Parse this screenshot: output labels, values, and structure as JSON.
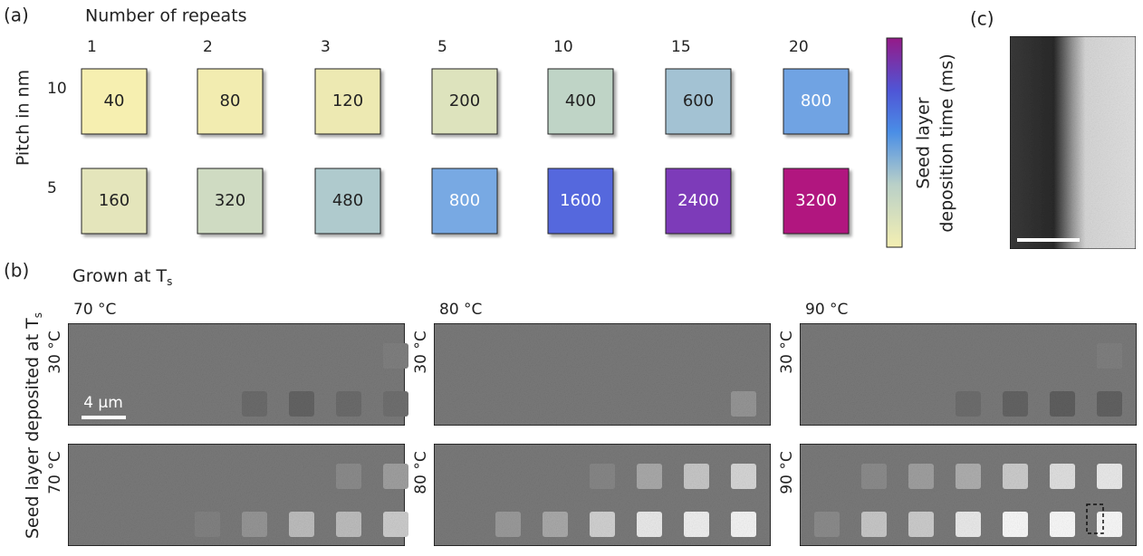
{
  "panel_a": {
    "label": "(a)",
    "x_title": "Number of repeats",
    "y_title": "Pitch in nm",
    "repeats": [
      "1",
      "2",
      "3",
      "5",
      "10",
      "15",
      "20"
    ],
    "pitches": [
      "10",
      "5"
    ],
    "tiles": [
      [
        {
          "value": 40,
          "color": "#f6efb0",
          "text_color": "#222"
        },
        {
          "value": 80,
          "color": "#f2ecb0",
          "text_color": "#222"
        },
        {
          "value": 120,
          "color": "#ede9b2",
          "text_color": "#222"
        },
        {
          "value": 200,
          "color": "#dde3bd",
          "text_color": "#222"
        },
        {
          "value": 400,
          "color": "#bfd4c6",
          "text_color": "#222"
        },
        {
          "value": 600,
          "color": "#a3c2d3",
          "text_color": "#222"
        },
        {
          "value": 800,
          "color": "#6fa3e3",
          "text_color": "#fff"
        }
      ],
      [
        {
          "value": 160,
          "color": "#e4e5bb",
          "text_color": "#222"
        },
        {
          "value": 320,
          "color": "#cfdbc2",
          "text_color": "#222"
        },
        {
          "value": 480,
          "color": "#afcacd",
          "text_color": "#222"
        },
        {
          "value": 800,
          "color": "#78a9e3",
          "text_color": "#fff"
        },
        {
          "value": 1600,
          "color": "#5468dd",
          "text_color": "#fff"
        },
        {
          "value": 2400,
          "color": "#7d3bb9",
          "text_color": "#fff"
        },
        {
          "value": 3200,
          "color": "#b1167f",
          "text_color": "#fff"
        }
      ]
    ],
    "colorbar_label_1": "Seed layer",
    "colorbar_label_2": "deposition time (ms)"
  },
  "panel_b": {
    "label": "(b)",
    "title": "Grown at T",
    "title_sub": "s",
    "y_title": "Seed layer deposited at T",
    "y_title_sub": "s",
    "columns": [
      "70 °C",
      "80 °C",
      "90 °C"
    ],
    "row_labels": [
      [
        "30 °C",
        "70 °C"
      ],
      [
        "30 °C",
        "80 °C"
      ],
      [
        "30 °C",
        "90 °C"
      ]
    ],
    "scale_bar": "4 µm"
  },
  "panel_c": {
    "label": "(c)"
  }
}
